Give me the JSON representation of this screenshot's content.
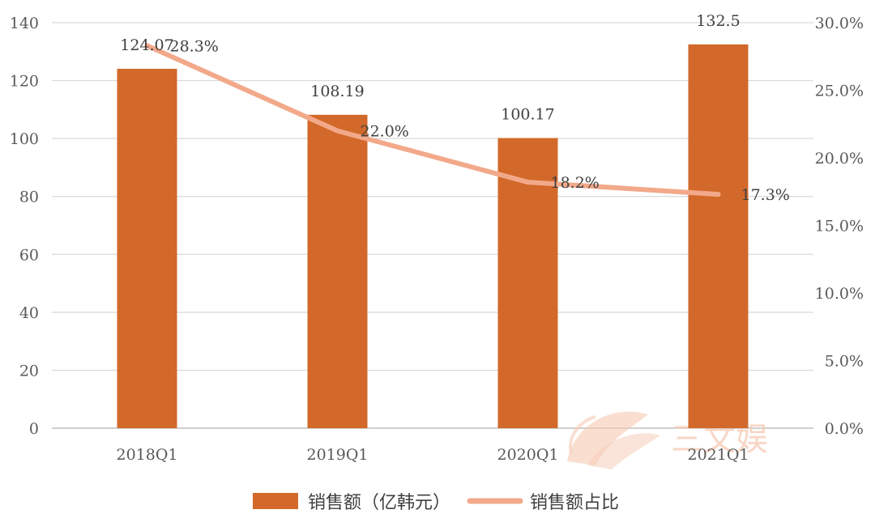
{
  "chart_data": {
    "type": "bar",
    "categories": [
      "2018Q1",
      "2019Q1",
      "2020Q1",
      "2021Q1"
    ],
    "series": [
      {
        "name": "销售额（亿韩元）",
        "type": "bar",
        "axis": "left",
        "color": "#d2692a",
        "values": [
          124.07,
          108.19,
          100.17,
          132.5
        ],
        "labels": [
          "124.07",
          "108.19",
          "100.17",
          "132.5"
        ]
      },
      {
        "name": "销售额占比",
        "type": "line",
        "axis": "right",
        "color": "#f2a98a",
        "values": [
          0.283,
          0.22,
          0.182,
          0.173
        ],
        "labels": [
          "28.3%",
          "22.0%",
          "18.2%",
          "17.3%"
        ]
      }
    ],
    "left_axis": {
      "ylim": [
        0,
        140
      ],
      "ticks": [
        0,
        20,
        40,
        60,
        80,
        100,
        120,
        140
      ],
      "tick_labels": [
        "0",
        "20",
        "40",
        "60",
        "80",
        "100",
        "120",
        "140"
      ]
    },
    "right_axis": {
      "ylim": [
        0,
        0.3
      ],
      "ticks": [
        0,
        0.05,
        0.1,
        0.15,
        0.2,
        0.25,
        0.3
      ],
      "tick_labels": [
        "0.0%",
        "5.0%",
        "10.0%",
        "15.0%",
        "20.0%",
        "25.0%",
        "30.0%"
      ]
    },
    "grid": true,
    "legend": {
      "position": "bottom",
      "entries": [
        "销售额（亿韩元）",
        "销售额占比"
      ]
    }
  },
  "watermark": {
    "text": "三文娱",
    "color": "#f6c9b3"
  }
}
